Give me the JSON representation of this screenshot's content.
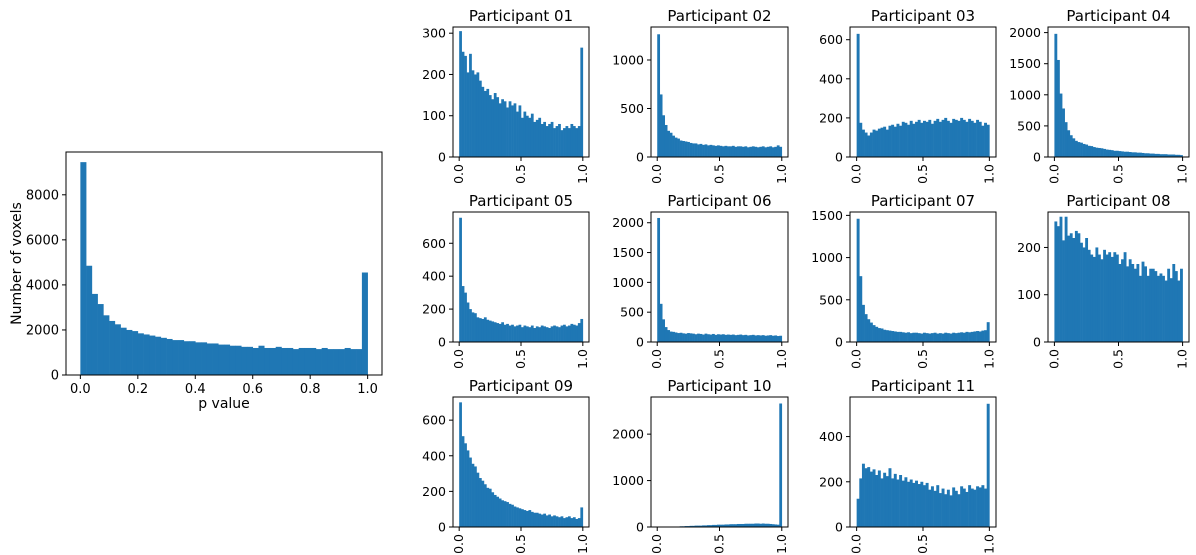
{
  "colors": {
    "bar": "#1f77b4",
    "axis": "#000000",
    "background": "#ffffff"
  },
  "chart_data": [
    {
      "type": "bar",
      "title": "",
      "xlabel": "p value",
      "ylabel": "Number of voxels",
      "xlim": [
        -0.05,
        1.05
      ],
      "ylim": [
        0,
        9900
      ],
      "xticks": [
        "0.0",
        "0.2",
        "0.4",
        "0.6",
        "0.8",
        "1.0"
      ],
      "yticks": [
        "0",
        "2000",
        "4000",
        "6000",
        "8000"
      ],
      "xtick_rotation": 0,
      "grid": false,
      "bin_range": [
        0,
        1
      ],
      "values": [
        9450,
        4850,
        3600,
        3150,
        2650,
        2400,
        2250,
        2100,
        2000,
        1950,
        1850,
        1800,
        1750,
        1700,
        1650,
        1600,
        1550,
        1550,
        1500,
        1500,
        1450,
        1450,
        1400,
        1400,
        1350,
        1350,
        1300,
        1300,
        1250,
        1250,
        1200,
        1300,
        1200,
        1200,
        1250,
        1200,
        1200,
        1150,
        1200,
        1200,
        1200,
        1150,
        1200,
        1150,
        1150,
        1150,
        1200,
        1150,
        1150,
        4550
      ]
    },
    {
      "type": "bar",
      "title": "Participant 01",
      "xlabel": "",
      "ylabel": "",
      "xlim": [
        -0.05,
        1.05
      ],
      "ylim": [
        0,
        315
      ],
      "xticks": [
        "0.0",
        "0.5",
        "1.0"
      ],
      "yticks": [
        "0",
        "100",
        "200",
        "300"
      ],
      "xtick_rotation": 90,
      "grid": false,
      "bin_range": [
        0,
        1
      ],
      "values": [
        305,
        255,
        245,
        205,
        250,
        210,
        200,
        205,
        185,
        170,
        160,
        165,
        150,
        140,
        155,
        145,
        130,
        140,
        135,
        120,
        135,
        125,
        130,
        110,
        125,
        95,
        110,
        100,
        95,
        105,
        85,
        90,
        95,
        80,
        85,
        75,
        80,
        85,
        70,
        75,
        80,
        65,
        70,
        75,
        70,
        80,
        75,
        70,
        75,
        265
      ]
    },
    {
      "type": "bar",
      "title": "Participant 02",
      "xlabel": "",
      "ylabel": "",
      "xlim": [
        -0.05,
        1.05
      ],
      "ylim": [
        0,
        1340
      ],
      "xticks": [
        "0.0",
        "0.5",
        "1.0"
      ],
      "yticks": [
        "0",
        "500",
        "1000"
      ],
      "xtick_rotation": 90,
      "grid": false,
      "bin_range": [
        0,
        1
      ],
      "values": [
        1265,
        645,
        430,
        330,
        270,
        250,
        220,
        200,
        190,
        170,
        165,
        160,
        155,
        145,
        140,
        140,
        130,
        135,
        125,
        130,
        120,
        125,
        120,
        115,
        120,
        115,
        110,
        115,
        110,
        110,
        115,
        105,
        110,
        110,
        105,
        110,
        100,
        105,
        110,
        105,
        100,
        105,
        110,
        100,
        105,
        110,
        100,
        105,
        120,
        105
      ]
    },
    {
      "type": "bar",
      "title": "Participant 03",
      "xlabel": "",
      "ylabel": "",
      "xlim": [
        -0.05,
        1.05
      ],
      "ylim": [
        0,
        665
      ],
      "xticks": [
        "0.0",
        "0.5",
        "1.0"
      ],
      "yticks": [
        "0",
        "200",
        "400",
        "600"
      ],
      "xtick_rotation": 90,
      "grid": false,
      "bin_range": [
        0,
        1
      ],
      "values": [
        630,
        175,
        140,
        125,
        110,
        125,
        140,
        135,
        145,
        150,
        155,
        140,
        160,
        165,
        155,
        170,
        160,
        180,
        175,
        165,
        185,
        170,
        180,
        190,
        175,
        185,
        180,
        190,
        170,
        185,
        195,
        180,
        190,
        200,
        185,
        175,
        195,
        190,
        185,
        200,
        190,
        180,
        195,
        185,
        175,
        190,
        180,
        160,
        175,
        165
      ]
    },
    {
      "type": "bar",
      "title": "Participant 04",
      "xlabel": "",
      "ylabel": "",
      "xlim": [
        -0.05,
        1.05
      ],
      "ylim": [
        0,
        2090
      ],
      "xticks": [
        "0.0",
        "0.5",
        "1.0"
      ],
      "yticks": [
        "0",
        "500",
        "1000",
        "1500",
        "2000"
      ],
      "xtick_rotation": 90,
      "grid": false,
      "bin_range": [
        0,
        1
      ],
      "values": [
        1980,
        1560,
        1020,
        780,
        560,
        430,
        350,
        300,
        260,
        240,
        230,
        210,
        200,
        180,
        175,
        160,
        150,
        145,
        140,
        130,
        120,
        115,
        110,
        100,
        100,
        95,
        90,
        85,
        85,
        80,
        75,
        75,
        70,
        70,
        65,
        60,
        60,
        55,
        55,
        50,
        50,
        45,
        45,
        45,
        40,
        40,
        40,
        35,
        35,
        30
      ]
    },
    {
      "type": "bar",
      "title": "Participant 05",
      "xlabel": "",
      "ylabel": "",
      "xlim": [
        -0.05,
        1.05
      ],
      "ylim": [
        0,
        790
      ],
      "xticks": [
        "0.0",
        "0.5",
        "1.0"
      ],
      "yticks": [
        "0",
        "200",
        "400",
        "600"
      ],
      "xtick_rotation": 90,
      "grid": false,
      "bin_range": [
        0,
        1
      ],
      "values": [
        755,
        340,
        300,
        240,
        200,
        180,
        175,
        150,
        145,
        140,
        150,
        135,
        130,
        125,
        120,
        115,
        110,
        120,
        105,
        110,
        100,
        105,
        95,
        100,
        105,
        90,
        100,
        95,
        90,
        100,
        85,
        95,
        90,
        100,
        95,
        90,
        85,
        95,
        100,
        95,
        90,
        100,
        105,
        95,
        100,
        110,
        105,
        100,
        115,
        140
      ]
    },
    {
      "type": "bar",
      "title": "Participant 06",
      "xlabel": "",
      "ylabel": "",
      "xlim": [
        -0.05,
        1.05
      ],
      "ylim": [
        0,
        2180
      ],
      "xticks": [
        "0.0",
        "0.5",
        "1.0"
      ],
      "yticks": [
        "0",
        "500",
        "1000",
        "1500",
        "2000"
      ],
      "xtick_rotation": 90,
      "grid": false,
      "bin_range": [
        0,
        1
      ],
      "values": [
        2080,
        640,
        380,
        250,
        200,
        175,
        170,
        160,
        150,
        155,
        145,
        140,
        150,
        145,
        140,
        130,
        140,
        135,
        125,
        140,
        130,
        125,
        135,
        120,
        130,
        125,
        130,
        120,
        125,
        120,
        125,
        115,
        120,
        125,
        115,
        120,
        110,
        115,
        120,
        110,
        115,
        110,
        115,
        105,
        110,
        115,
        105,
        110,
        100,
        105
      ]
    },
    {
      "type": "bar",
      "title": "Participant 07",
      "xlabel": "",
      "ylabel": "",
      "xlim": [
        -0.05,
        1.05
      ],
      "ylim": [
        0,
        1540
      ],
      "xticks": [
        "0.0",
        "0.5",
        "1.0"
      ],
      "yticks": [
        "0",
        "500",
        "1000",
        "1500"
      ],
      "xtick_rotation": 90,
      "grid": false,
      "bin_range": [
        0,
        1
      ],
      "values": [
        1460,
        780,
        440,
        330,
        270,
        230,
        200,
        180,
        165,
        160,
        145,
        140,
        135,
        130,
        125,
        120,
        120,
        115,
        110,
        115,
        105,
        110,
        110,
        105,
        100,
        110,
        105,
        100,
        105,
        110,
        100,
        105,
        100,
        110,
        105,
        100,
        110,
        105,
        110,
        115,
        110,
        120,
        115,
        120,
        125,
        130,
        125,
        135,
        140,
        235
      ]
    },
    {
      "type": "bar",
      "title": "Participant 08",
      "xlabel": "",
      "ylabel": "",
      "xlim": [
        -0.05,
        1.05
      ],
      "ylim": [
        0,
        275
      ],
      "xticks": [
        "0.0",
        "0.5",
        "1.0"
      ],
      "yticks": [
        "0",
        "100",
        "200"
      ],
      "xtick_rotation": 90,
      "grid": false,
      "bin_range": [
        0,
        1
      ],
      "values": [
        255,
        245,
        265,
        215,
        265,
        225,
        230,
        220,
        235,
        230,
        210,
        200,
        220,
        195,
        185,
        180,
        200,
        185,
        175,
        195,
        185,
        190,
        180,
        190,
        185,
        165,
        175,
        190,
        160,
        175,
        165,
        155,
        165,
        140,
        170,
        160,
        140,
        155,
        155,
        150,
        140,
        145,
        140,
        130,
        155,
        135,
        165,
        150,
        130,
        155
      ]
    },
    {
      "type": "bar",
      "title": "Participant 09",
      "xlabel": "",
      "ylabel": "",
      "xlim": [
        -0.05,
        1.05
      ],
      "ylim": [
        0,
        730
      ],
      "xticks": [
        "0.0",
        "0.5",
        "1.0"
      ],
      "yticks": [
        "0",
        "200",
        "400",
        "600"
      ],
      "xtick_rotation": 90,
      "grid": false,
      "bin_range": [
        0,
        1
      ],
      "values": [
        700,
        510,
        470,
        430,
        390,
        355,
        340,
        305,
        275,
        260,
        240,
        220,
        215,
        195,
        180,
        170,
        160,
        150,
        145,
        140,
        130,
        125,
        115,
        110,
        105,
        100,
        95,
        90,
        95,
        85,
        80,
        80,
        75,
        70,
        75,
        65,
        70,
        60,
        65,
        60,
        55,
        60,
        50,
        55,
        60,
        50,
        55,
        45,
        50,
        110
      ]
    },
    {
      "type": "bar",
      "title": "Participant 10",
      "xlabel": "",
      "ylabel": "",
      "xlim": [
        -0.05,
        1.05
      ],
      "ylim": [
        0,
        2800
      ],
      "xticks": [
        "0.0",
        "0.5",
        "1.0"
      ],
      "yticks": [
        "0",
        "1000",
        "2000"
      ],
      "xtick_rotation": 90,
      "grid": false,
      "bin_range": [
        0,
        1
      ],
      "values": [
        0,
        0,
        0,
        5,
        5,
        5,
        10,
        10,
        10,
        15,
        15,
        20,
        20,
        25,
        25,
        30,
        30,
        30,
        35,
        35,
        40,
        40,
        45,
        45,
        50,
        50,
        50,
        55,
        55,
        60,
        60,
        60,
        65,
        65,
        65,
        70,
        70,
        70,
        70,
        75,
        75,
        70,
        75,
        70,
        70,
        65,
        60,
        55,
        50,
        2660
      ]
    },
    {
      "type": "bar",
      "title": "Participant 11",
      "xlabel": "",
      "ylabel": "",
      "xlim": [
        -0.05,
        1.05
      ],
      "ylim": [
        0,
        575
      ],
      "xticks": [
        "0.0",
        "0.5",
        "1.0"
      ],
      "yticks": [
        "0",
        "200",
        "400"
      ],
      "xtick_rotation": 90,
      "grid": false,
      "bin_range": [
        0,
        1
      ],
      "values": [
        125,
        215,
        280,
        260,
        265,
        245,
        255,
        230,
        250,
        215,
        240,
        225,
        260,
        215,
        235,
        210,
        230,
        205,
        220,
        200,
        210,
        195,
        205,
        190,
        200,
        185,
        195,
        165,
        180,
        160,
        185,
        150,
        170,
        145,
        165,
        140,
        175,
        160,
        145,
        180,
        170,
        155,
        185,
        170,
        165,
        180,
        175,
        185,
        170,
        545
      ]
    }
  ]
}
